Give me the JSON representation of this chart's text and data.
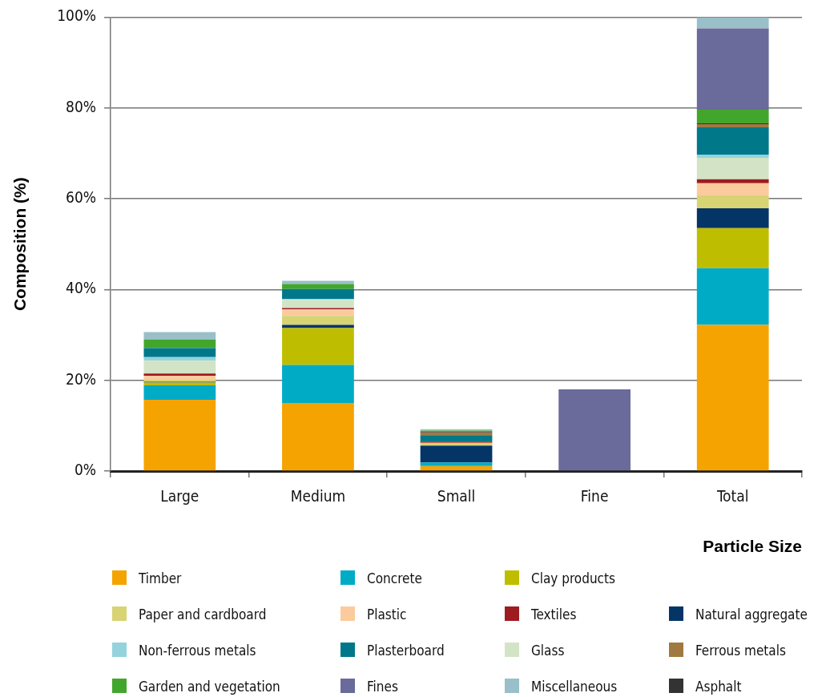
{
  "chart_data": {
    "type": "bar",
    "stacked": true,
    "xlabel": "Particle Size",
    "ylabel": "Composition (%)",
    "categories": [
      "Large",
      "Medium",
      "Small",
      "Fine",
      "Total"
    ],
    "ylim": [
      0,
      100
    ],
    "yticks": [
      {
        "value": 0,
        "label": "0%"
      },
      {
        "value": 20,
        "label": "20%"
      },
      {
        "value": 40,
        "label": "40%"
      },
      {
        "value": 60,
        "label": "60%"
      },
      {
        "value": 80,
        "label": "80%"
      },
      {
        "value": 100,
        "label": "100%"
      }
    ],
    "grid": "y",
    "legend": "bottom",
    "series": [
      {
        "name": "Timber",
        "color": "#f5a300",
        "values": [
          15.7,
          15.0,
          1.1,
          0,
          32.2
        ]
      },
      {
        "name": "Concrete",
        "color": "#00abc6",
        "values": [
          3.2,
          8.4,
          0.8,
          0,
          12.5
        ]
      },
      {
        "name": "Clay products",
        "color": "#bfbd00",
        "values": [
          0.6,
          8.1,
          0,
          0,
          8.8
        ]
      },
      {
        "name": "Natural aggregate",
        "color": "#053566",
        "values": [
          0.2,
          0.7,
          3.7,
          0,
          4.4
        ]
      },
      {
        "name": "Paper and cardboard",
        "color": "#d8d373",
        "values": [
          0.4,
          2.0,
          0.6,
          0,
          2.8
        ]
      },
      {
        "name": "Plastic",
        "color": "#fbcb9d",
        "values": [
          0.9,
          1.4,
          0,
          0,
          2.7
        ]
      },
      {
        "name": "Textiles",
        "color": "#9e1b20",
        "values": [
          0.5,
          0.3,
          0.3,
          0,
          0.9
        ]
      },
      {
        "name": "Glass",
        "color": "#d2e4c5",
        "values": [
          2.8,
          1.8,
          0,
          0,
          4.7
        ]
      },
      {
        "name": "Non-ferrous metals",
        "color": "#94d2de",
        "values": [
          0.8,
          0.2,
          0,
          0,
          0.7
        ]
      },
      {
        "name": "Plasterboard",
        "color": "#007889",
        "values": [
          2.0,
          2.2,
          1.4,
          0,
          6.0
        ]
      },
      {
        "name": "Ferrous metals",
        "color": "#a07941",
        "values": [
          0,
          0,
          0.6,
          0,
          0.7
        ]
      },
      {
        "name": "Asphalt",
        "color": "#333333",
        "values": [
          0,
          0,
          0.2,
          0,
          0.2
        ]
      },
      {
        "name": "Garden and vegetation",
        "color": "#43a62c",
        "values": [
          1.9,
          1.1,
          0.2,
          0,
          3.0
        ]
      },
      {
        "name": "Fines",
        "color": "#6a6a9b",
        "values": [
          0,
          0,
          0,
          18.0,
          17.9
        ]
      },
      {
        "name": "Miscellaneous",
        "color": "#99bfc8",
        "values": [
          1.6,
          0.7,
          0.3,
          0,
          2.5
        ]
      }
    ]
  }
}
